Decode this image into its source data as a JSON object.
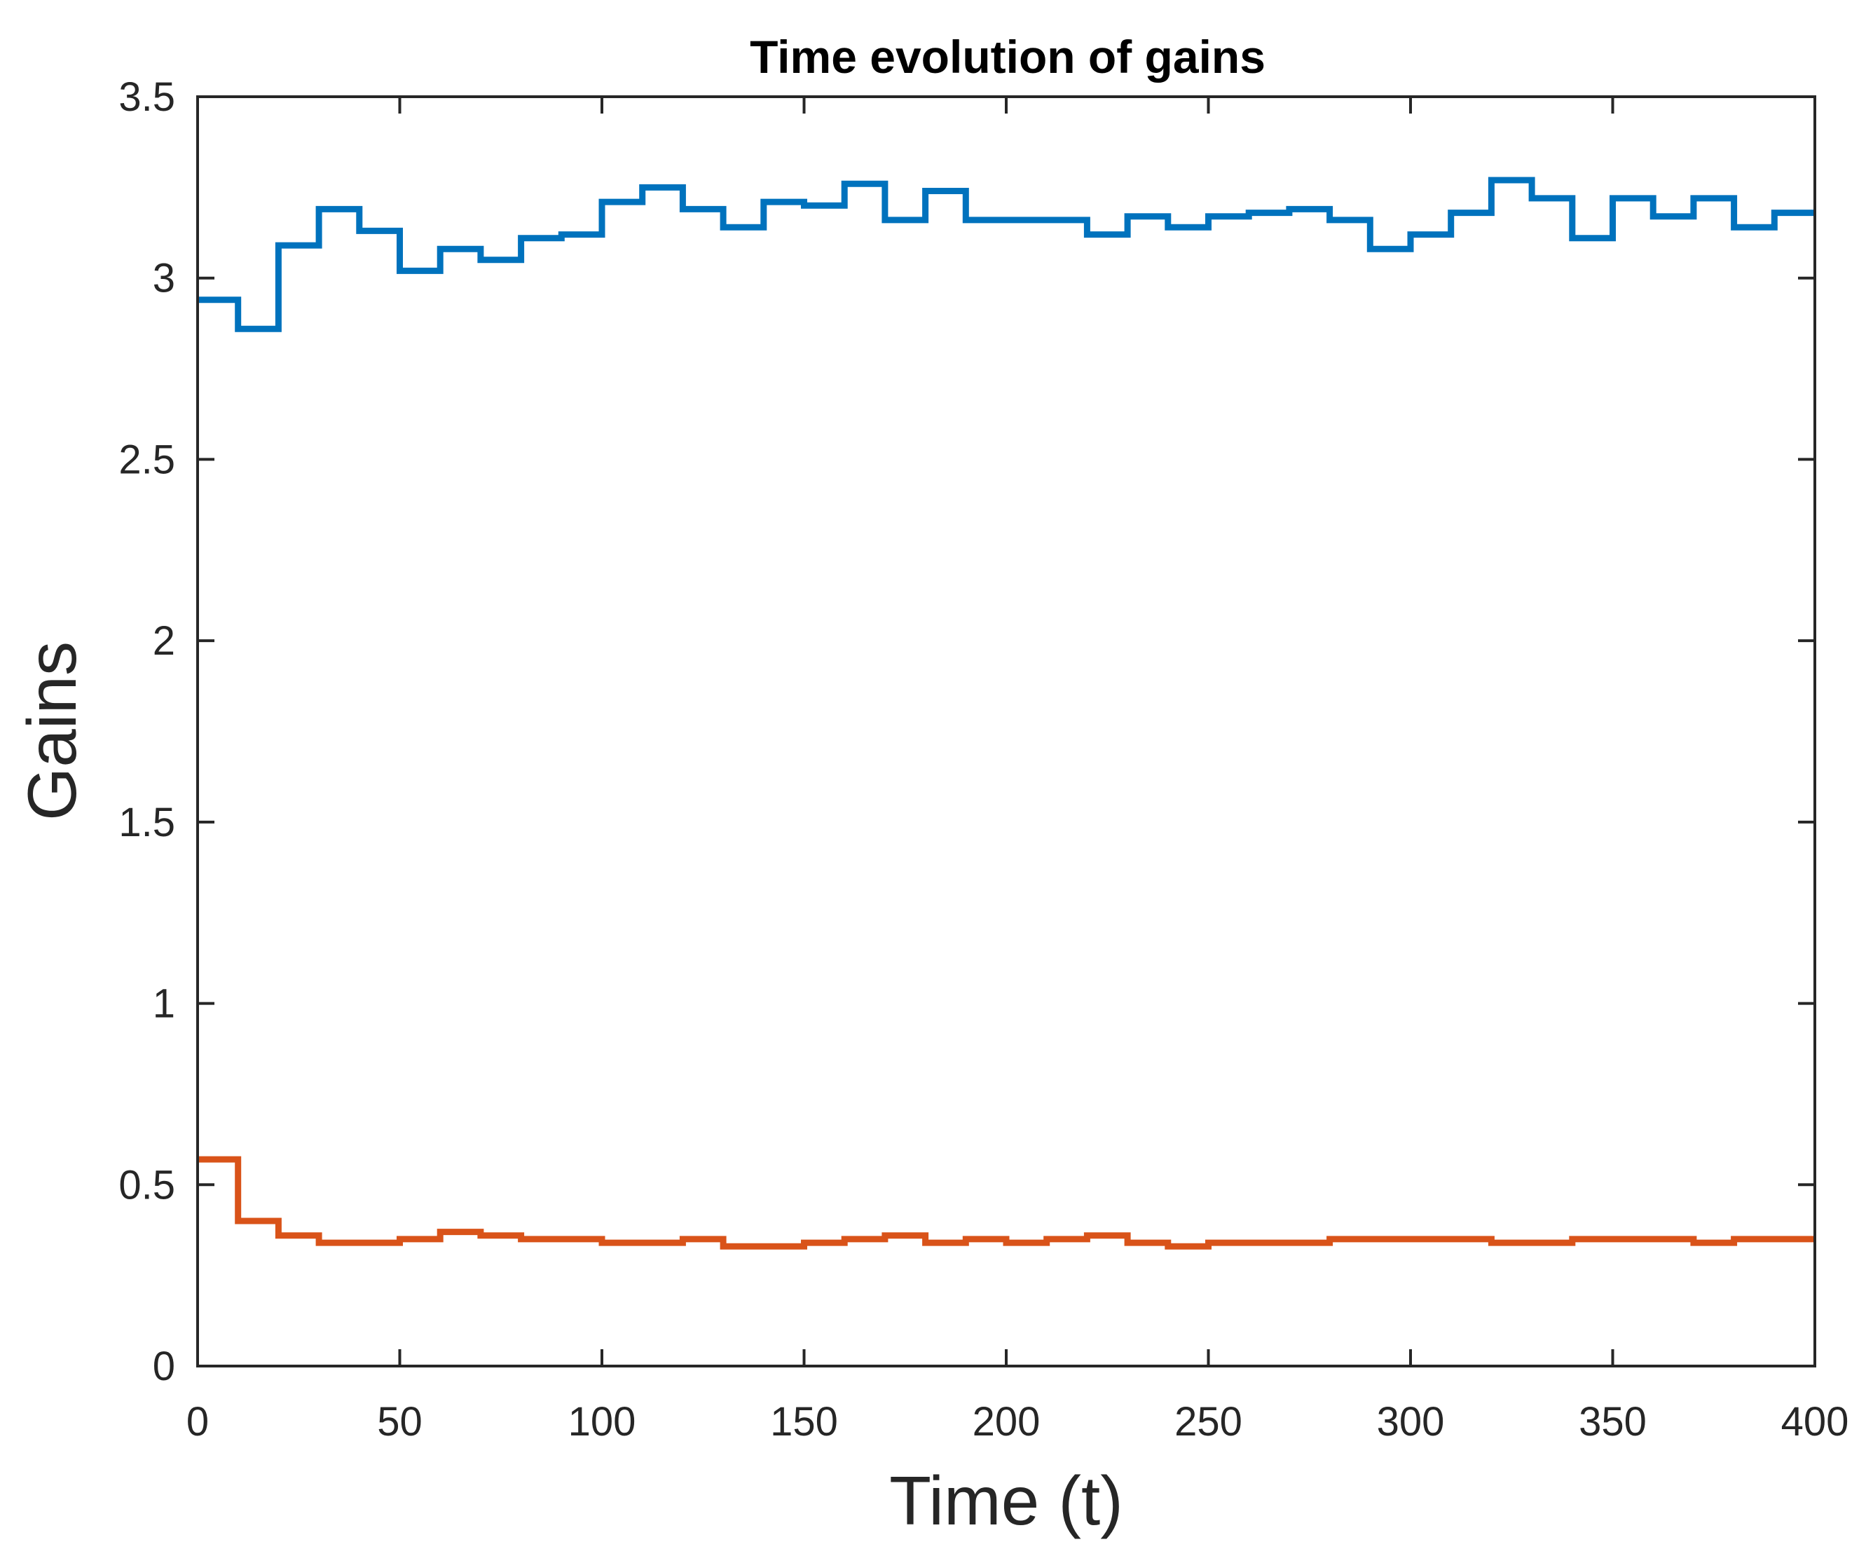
{
  "chart_data": {
    "type": "line",
    "style": "step",
    "title": "Time evolution of gains",
    "xlabel": "Time (t)",
    "ylabel": "Gains",
    "xlim": [
      0,
      400
    ],
    "ylim": [
      0,
      3.5
    ],
    "xticks": [
      0,
      50,
      100,
      150,
      200,
      250,
      300,
      350,
      400
    ],
    "xtick_labels": [
      "0",
      "50",
      "100",
      "150",
      "200",
      "250",
      "300",
      "350",
      "400"
    ],
    "yticks": [
      0,
      0.5,
      1,
      1.5,
      2,
      2.5,
      3,
      3.5
    ],
    "ytick_labels": [
      "0",
      "0.5",
      "1",
      "1.5",
      "2",
      "2.5",
      "3",
      "3.5"
    ],
    "grid": false,
    "legend": "none",
    "x": [
      0,
      10,
      20,
      30,
      40,
      50,
      60,
      70,
      80,
      90,
      100,
      110,
      120,
      130,
      140,
      150,
      160,
      170,
      180,
      190,
      200,
      210,
      220,
      230,
      240,
      250,
      260,
      270,
      280,
      290,
      300,
      310,
      320,
      330,
      340,
      350,
      360,
      370,
      380,
      390
    ],
    "x_end": 400,
    "series": [
      {
        "color": "#0072BD",
        "values": [
          2.94,
          2.86,
          3.09,
          3.19,
          3.13,
          3.02,
          3.08,
          3.05,
          3.11,
          3.12,
          3.21,
          3.25,
          3.19,
          3.14,
          3.21,
          3.2,
          3.26,
          3.16,
          3.24,
          3.16,
          3.16,
          3.16,
          3.12,
          3.17,
          3.14,
          3.17,
          3.18,
          3.19,
          3.16,
          3.08,
          3.12,
          3.18,
          3.27,
          3.22,
          3.11,
          3.22,
          3.17,
          3.22,
          3.14,
          3.18
        ]
      },
      {
        "color": "#D95319",
        "values": [
          0.57,
          0.4,
          0.36,
          0.34,
          0.34,
          0.35,
          0.37,
          0.36,
          0.35,
          0.35,
          0.34,
          0.34,
          0.35,
          0.33,
          0.33,
          0.34,
          0.35,
          0.36,
          0.34,
          0.35,
          0.34,
          0.35,
          0.36,
          0.34,
          0.33,
          0.34,
          0.34,
          0.34,
          0.35,
          0.35,
          0.35,
          0.35,
          0.34,
          0.34,
          0.35,
          0.35,
          0.35,
          0.34,
          0.35,
          0.35
        ]
      }
    ]
  }
}
